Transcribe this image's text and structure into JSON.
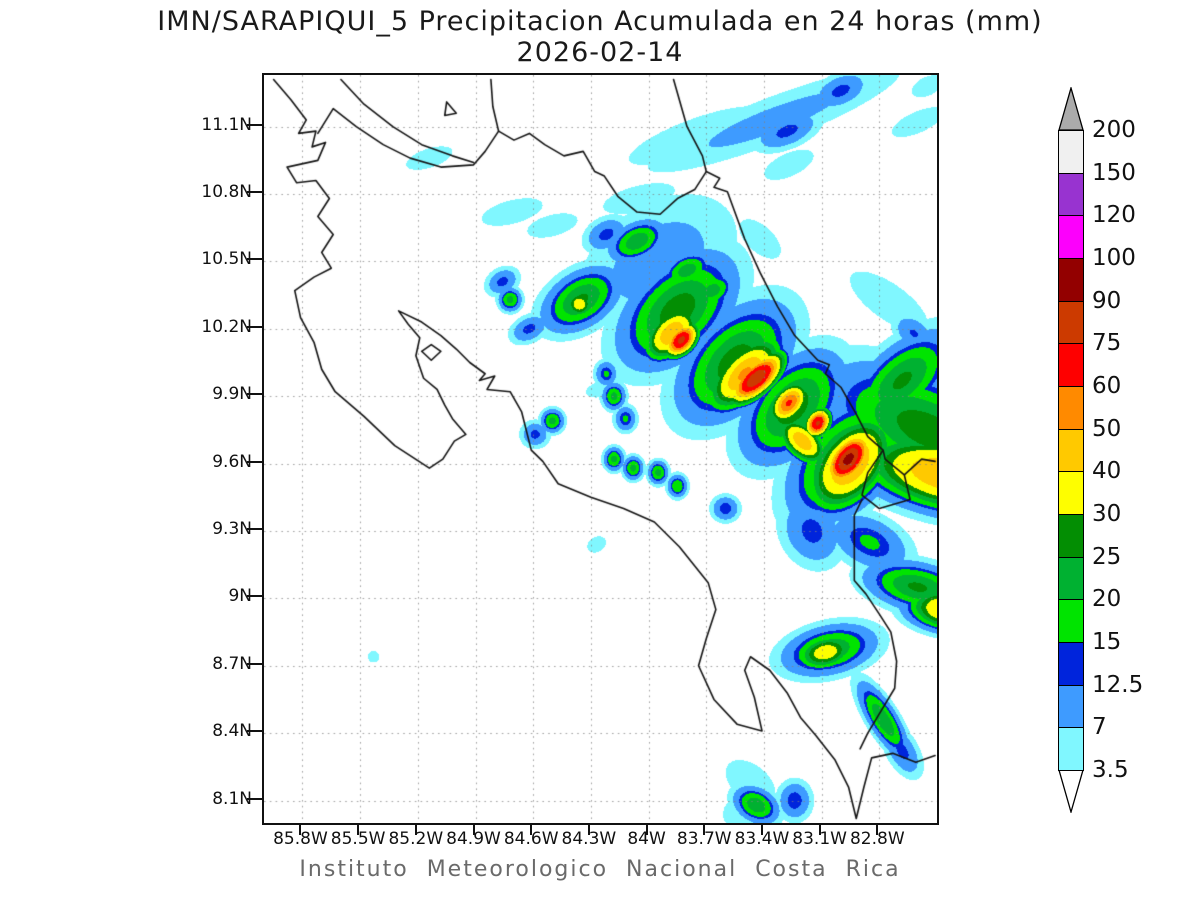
{
  "title": {
    "line1": "IMN/SARAPIQUI_5 Precipitacion Acumulada en 24 horas (mm)",
    "line2": "2026-02-14"
  },
  "footer": "Instituto Meteorologico Nacional Costa Rica",
  "axes": {
    "lat_tick_labels": [
      "11.1N",
      "10.8N",
      "10.5N",
      "10.2N",
      "9.9N",
      "9.6N",
      "9.3N",
      "9N",
      "8.7N",
      "8.4N",
      "8.1N"
    ],
    "lat_tick_values": [
      11.1,
      10.8,
      10.5,
      10.2,
      9.9,
      9.6,
      9.3,
      9.0,
      8.7,
      8.4,
      8.1
    ],
    "lon_tick_labels": [
      "85.8W",
      "85.5W",
      "85.2W",
      "84.9W",
      "84.6W",
      "84.3W",
      "84W",
      "83.7W",
      "83.4W",
      "83.1W",
      "82.8W"
    ],
    "lon_tick_values": [
      85.8,
      85.5,
      85.2,
      84.9,
      84.6,
      84.3,
      84.0,
      83.7,
      83.4,
      83.1,
      82.8
    ]
  },
  "colorbar": {
    "labels": [
      "200",
      "150",
      "120",
      "100",
      "90",
      "75",
      "60",
      "50",
      "40",
      "30",
      "25",
      "20",
      "15",
      "12.5",
      "7",
      "3.5"
    ],
    "cell_colors_top_to_bottom": [
      "#F0F0F0",
      "#9833D0",
      "#FC00FC",
      "#930000",
      "#CC3A00",
      "#FE0000",
      "#FF8A00",
      "#FFC900",
      "#FEFE00",
      "#038E03",
      "#00B131",
      "#00E400",
      "#0024DC",
      "#3E9BFF",
      "#80F7FF"
    ],
    "over_arrow_color": "#ABABAB",
    "under_arrow_color": "#FFFFFF"
  },
  "style": {
    "grid_color": "rgba(130,130,130,0.75)",
    "coast_color": "#141414",
    "frame_color": "#111111",
    "title_color": "#1a1a1a",
    "footer_color": "#6a6a6a"
  },
  "chart_data": {
    "type": "heatmap",
    "title": "IMN/SARAPIQUI_5 Precipitacion Acumulada en 24 horas (mm)",
    "date": "2026-02-14",
    "units": "mm",
    "source": "Instituto Meteorologico Nacional Costa Rica",
    "lon_range_west": [
      86.0,
      82.5
    ],
    "lat_range": [
      8.0,
      11.33
    ],
    "grid": "dotted",
    "legend_position": "right",
    "levels_mm": [
      3.5,
      7,
      12.5,
      15,
      20,
      25,
      30,
      40,
      50,
      60,
      75,
      90,
      100,
      120,
      150,
      200
    ],
    "level_colors_low_to_high": [
      "#80F7FF",
      "#3E9BFF",
      "#0024DC",
      "#00E400",
      "#00B131",
      "#038E03",
      "#FEFE00",
      "#FFC900",
      "#FF8A00",
      "#FE0000",
      "#CC3A00",
      "#930000",
      "#FC00FC",
      "#9833D0",
      "#F0F0F0"
    ],
    "over_color": "#ABABAB",
    "precip_maxima_blobs": [
      [
        83.35,
        11.13,
        9,
        0.5,
        0.075,
        18
      ],
      [
        83.0,
        11.26,
        14,
        0.1,
        0.05,
        18
      ],
      [
        83.28,
        11.08,
        14,
        0.12,
        0.05,
        18
      ],
      [
        83.75,
        11.06,
        6.5,
        0.33,
        0.07,
        17
      ],
      [
        84.05,
        10.78,
        5.5,
        0.2,
        0.06,
        12
      ],
      [
        84.71,
        10.72,
        5.5,
        0.17,
        0.055,
        12
      ],
      [
        84.5,
        10.66,
        5.5,
        0.14,
        0.05,
        12
      ],
      [
        85.14,
        10.96,
        5.5,
        0.13,
        0.045,
        15
      ],
      [
        82.6,
        11.12,
        5.5,
        0.15,
        0.05,
        20
      ],
      [
        82.55,
        11.28,
        5.0,
        0.1,
        0.05,
        20
      ],
      [
        83.27,
        10.93,
        6,
        0.13,
        0.05,
        20
      ],
      [
        83.42,
        10.6,
        6,
        0.06,
        0.12,
        55
      ],
      [
        82.75,
        10.32,
        6,
        0.08,
        0.22,
        60
      ],
      [
        82.62,
        10.18,
        13,
        0.05,
        0.08,
        60
      ],
      [
        83.95,
        10.5,
        10,
        0.3,
        0.18,
        25
      ],
      [
        84.06,
        10.59,
        24,
        0.1,
        0.055,
        20
      ],
      [
        83.8,
        10.46,
        23,
        0.09,
        0.05,
        20
      ],
      [
        83.67,
        10.37,
        23,
        0.08,
        0.05,
        20
      ],
      [
        83.9,
        10.4,
        16,
        0.06,
        0.04,
        0
      ],
      [
        84.22,
        10.62,
        14,
        0.08,
        0.05,
        20
      ],
      [
        84.36,
        10.31,
        36,
        0.05,
        0.04,
        0
      ],
      [
        84.35,
        10.33,
        26,
        0.14,
        0.08,
        25
      ],
      [
        84.76,
        10.41,
        14,
        0.06,
        0.04,
        20
      ],
      [
        84.62,
        10.2,
        14,
        0.07,
        0.04,
        20
      ],
      [
        84.72,
        10.33,
        22,
        0.04,
        0.035,
        0
      ],
      [
        84.22,
        10.0,
        16,
        0.04,
        0.04,
        0
      ],
      [
        84.25,
        9.93,
        5,
        0.09,
        0.04,
        10
      ],
      [
        83.85,
        10.28,
        28,
        0.22,
        0.13,
        35
      ],
      [
        83.55,
        10.05,
        28,
        0.22,
        0.13,
        38
      ],
      [
        83.25,
        9.85,
        28,
        0.2,
        0.12,
        40
      ],
      [
        82.98,
        9.62,
        29,
        0.22,
        0.13,
        42
      ],
      [
        82.68,
        9.97,
        26,
        0.2,
        0.1,
        35
      ],
      [
        82.55,
        9.75,
        28,
        0.15,
        0.35,
        70
      ],
      [
        82.45,
        9.55,
        50,
        0.1,
        0.28,
        80
      ],
      [
        83.88,
        10.18,
        50,
        0.1,
        0.06,
        35
      ],
      [
        83.83,
        10.15,
        80,
        0.06,
        0.038,
        35
      ],
      [
        83.5,
        10.0,
        52,
        0.14,
        0.07,
        38
      ],
      [
        83.44,
        9.98,
        88,
        0.1,
        0.045,
        35
      ],
      [
        83.27,
        9.87,
        62,
        0.07,
        0.045,
        38
      ],
      [
        83.12,
        9.78,
        78,
        0.045,
        0.035,
        40
      ],
      [
        83.2,
        9.7,
        48,
        0.05,
        0.09,
        55
      ],
      [
        82.96,
        9.62,
        97,
        0.085,
        0.05,
        42
      ],
      [
        82.95,
        9.6,
        52,
        0.16,
        0.1,
        42
      ],
      [
        83.15,
        9.3,
        14,
        0.1,
        0.12,
        50
      ],
      [
        82.85,
        9.25,
        16,
        0.08,
        0.15,
        70
      ],
      [
        82.6,
        9.05,
        26,
        0.07,
        0.18,
        80
      ],
      [
        82.43,
        8.95,
        45,
        0.06,
        0.14,
        85
      ],
      [
        83.06,
        8.77,
        25,
        0.16,
        0.07,
        10
      ],
      [
        83.08,
        8.76,
        36,
        0.1,
        0.05,
        10
      ],
      [
        82.78,
        8.46,
        25,
        0.13,
        0.045,
        -53
      ],
      [
        82.68,
        8.32,
        14,
        0.09,
        0.05,
        -53
      ],
      [
        83.44,
        8.08,
        24,
        0.05,
        0.08,
        70
      ],
      [
        83.47,
        8.18,
        7,
        0.07,
        0.12,
        60
      ],
      [
        83.24,
        8.1,
        15,
        0.06,
        0.06,
        0
      ],
      [
        83.55,
        8.04,
        6,
        0.06,
        0.06,
        0
      ],
      [
        84.5,
        9.79,
        22,
        0.04,
        0.035,
        0
      ],
      [
        84.59,
        9.73,
        14,
        0.05,
        0.04,
        0
      ],
      [
        84.18,
        9.9,
        22,
        0.04,
        0.04,
        0
      ],
      [
        84.12,
        9.8,
        16,
        0.04,
        0.04,
        0
      ],
      [
        84.18,
        9.62,
        22,
        0.035,
        0.035,
        0
      ],
      [
        84.08,
        9.58,
        22,
        0.035,
        0.035,
        0
      ],
      [
        83.95,
        9.56,
        22,
        0.035,
        0.035,
        0
      ],
      [
        83.85,
        9.5,
        20,
        0.035,
        0.035,
        0
      ],
      [
        83.6,
        9.4,
        15,
        0.05,
        0.04,
        0
      ],
      [
        85.43,
        8.74,
        5,
        0.035,
        0.03,
        0
      ],
      [
        84.27,
        9.24,
        5,
        0.06,
        0.04,
        20
      ]
    ],
    "coastlines": {
      "pacific_coast": [
        [
          85.95,
          11.31
        ],
        [
          85.86,
          11.22
        ],
        [
          85.78,
          11.13
        ],
        [
          85.82,
          11.07
        ],
        [
          85.73,
          11.08
        ],
        [
          85.75,
          11.01
        ],
        [
          85.68,
          11.03
        ],
        [
          85.72,
          10.95
        ],
        [
          85.88,
          10.92
        ],
        [
          85.83,
          10.85
        ],
        [
          85.73,
          10.86
        ],
        [
          85.66,
          10.78
        ],
        [
          85.72,
          10.7
        ],
        [
          85.64,
          10.62
        ],
        [
          85.7,
          10.54
        ],
        [
          85.65,
          10.47
        ],
        [
          85.74,
          10.43
        ],
        [
          85.84,
          10.37
        ],
        [
          85.81,
          10.25
        ],
        [
          85.74,
          10.14
        ],
        [
          85.7,
          10.02
        ],
        [
          85.63,
          9.92
        ],
        [
          85.48,
          9.81
        ],
        [
          85.32,
          9.68
        ],
        [
          85.14,
          9.58
        ],
        [
          85.07,
          9.62
        ],
        [
          85.01,
          9.7
        ],
        [
          84.95,
          9.73
        ],
        [
          85.02,
          9.8
        ],
        [
          85.06,
          9.86
        ],
        [
          85.1,
          9.93
        ],
        [
          85.17,
          9.98
        ],
        [
          85.21,
          10.08
        ],
        [
          85.19,
          10.16
        ],
        [
          85.25,
          10.22
        ],
        [
          85.3,
          10.28
        ],
        [
          85.18,
          10.23
        ],
        [
          85.08,
          10.17
        ],
        [
          85.0,
          10.11
        ],
        [
          84.93,
          10.05
        ],
        [
          84.85,
          10.0
        ],
        [
          84.88,
          9.97
        ],
        [
          84.8,
          9.99
        ],
        [
          84.84,
          9.93
        ],
        [
          84.72,
          9.92
        ],
        [
          84.66,
          9.83
        ],
        [
          84.61,
          9.66
        ],
        [
          84.55,
          9.61
        ],
        [
          84.47,
          9.51
        ],
        [
          84.3,
          9.45
        ],
        [
          84.13,
          9.4
        ],
        [
          83.97,
          9.34
        ],
        [
          83.84,
          9.23
        ],
        [
          83.69,
          9.07
        ],
        [
          83.65,
          8.95
        ],
        [
          83.7,
          8.82
        ],
        [
          83.74,
          8.7
        ],
        [
          83.66,
          8.55
        ],
        [
          83.54,
          8.44
        ],
        [
          83.41,
          8.41
        ],
        [
          83.45,
          8.56
        ],
        [
          83.5,
          8.68
        ],
        [
          83.47,
          8.74
        ],
        [
          83.37,
          8.68
        ],
        [
          83.28,
          8.58
        ],
        [
          83.21,
          8.47
        ],
        [
          83.13,
          8.39
        ],
        [
          83.03,
          8.28
        ],
        [
          82.96,
          8.16
        ],
        [
          82.92,
          8.02
        ],
        [
          82.88,
          8.16
        ],
        [
          82.84,
          8.29
        ],
        [
          82.73,
          8.31
        ],
        [
          82.61,
          8.27
        ],
        [
          82.51,
          8.3
        ]
      ],
      "lake_nicaragua_shore": [
        [
          85.6,
          11.31
        ],
        [
          85.48,
          11.2
        ],
        [
          85.33,
          11.1
        ],
        [
          85.18,
          11.02
        ],
        [
          85.02,
          10.97
        ],
        [
          84.91,
          10.94
        ]
      ],
      "nicaragua_border_river": [
        [
          85.72,
          11.07
        ],
        [
          85.64,
          11.18
        ],
        [
          85.52,
          11.1
        ],
        [
          85.38,
          11.02
        ],
        [
          85.24,
          10.96
        ],
        [
          85.08,
          10.92
        ],
        [
          84.91,
          10.93
        ],
        [
          84.85,
          10.99
        ],
        [
          84.78,
          11.08
        ],
        [
          84.7,
          11.04
        ],
        [
          84.62,
          11.07
        ],
        [
          84.54,
          11.02
        ],
        [
          84.44,
          10.97
        ],
        [
          84.34,
          10.99
        ],
        [
          84.28,
          10.9
        ],
        [
          84.23,
          10.88
        ],
        [
          84.16,
          10.79
        ],
        [
          84.06,
          10.72
        ],
        [
          83.94,
          10.71
        ],
        [
          83.85,
          10.78
        ],
        [
          83.76,
          10.82
        ],
        [
          83.7,
          10.9
        ]
      ],
      "lake_east_shore": [
        [
          84.82,
          11.31
        ],
        [
          84.81,
          11.19
        ],
        [
          84.78,
          11.08
        ]
      ],
      "lake_island": [
        [
          85.05,
          11.21
        ],
        [
          85.0,
          11.16
        ],
        [
          85.06,
          11.15
        ],
        [
          85.05,
          11.21
        ]
      ],
      "caribbean_coast": [
        [
          83.87,
          11.31
        ],
        [
          83.8,
          11.1
        ],
        [
          83.72,
          10.97
        ],
        [
          83.7,
          10.9
        ],
        [
          83.63,
          10.87
        ],
        [
          83.66,
          10.83
        ],
        [
          83.59,
          10.81
        ],
        [
          83.56,
          10.74
        ],
        [
          83.5,
          10.6
        ],
        [
          83.42,
          10.45
        ],
        [
          83.33,
          10.3
        ],
        [
          83.24,
          10.17
        ],
        [
          83.12,
          10.06
        ],
        [
          83.06,
          10.04
        ],
        [
          83.08,
          10.0
        ],
        [
          83.0,
          9.94
        ],
        [
          82.92,
          9.82
        ],
        [
          82.86,
          9.72
        ],
        [
          82.78,
          9.66
        ],
        [
          82.86,
          9.56
        ],
        [
          82.89,
          9.46
        ],
        [
          82.8,
          9.4
        ],
        [
          82.64,
          9.44
        ],
        [
          82.67,
          9.55
        ],
        [
          82.77,
          9.62
        ],
        [
          82.78,
          9.66
        ]
      ],
      "coast_exit_east": [
        [
          82.67,
          9.55
        ],
        [
          82.58,
          9.62
        ],
        [
          82.51,
          9.61
        ]
      ],
      "panama_border": [
        [
          82.89,
          9.44
        ],
        [
          82.93,
          9.37
        ],
        [
          82.93,
          9.08
        ],
        [
          82.87,
          9.02
        ],
        [
          82.8,
          8.93
        ],
        [
          82.74,
          8.85
        ],
        [
          82.71,
          8.72
        ],
        [
          82.72,
          8.6
        ],
        [
          82.79,
          8.5
        ],
        [
          82.86,
          8.4
        ],
        [
          82.9,
          8.33
        ]
      ],
      "chira_island": [
        [
          85.18,
          10.1
        ],
        [
          85.13,
          10.13
        ],
        [
          85.08,
          10.1
        ],
        [
          85.13,
          10.06
        ],
        [
          85.18,
          10.1
        ]
      ]
    }
  }
}
